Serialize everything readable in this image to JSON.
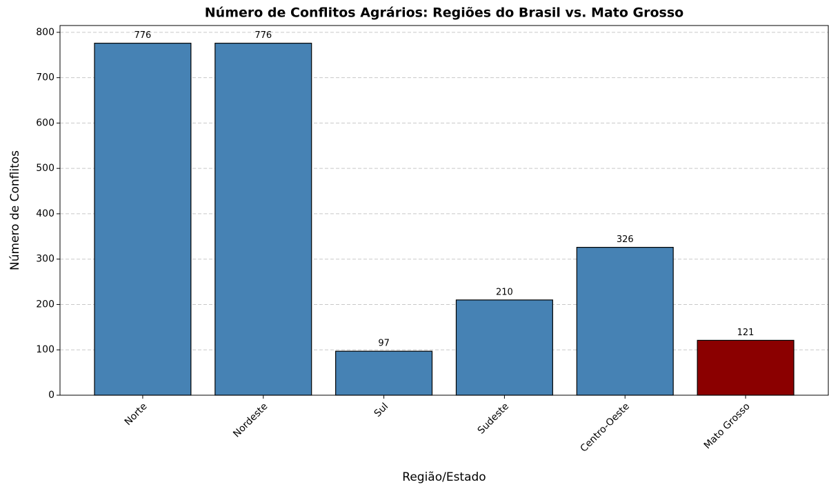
{
  "chart_data": {
    "type": "bar",
    "title": "Número de Conflitos Agrários: Regiões do Brasil vs. Mato Grosso",
    "x_label": "Região/Estado",
    "y_label": "Número de Conflitos",
    "categories": [
      "Norte",
      "Nordeste",
      "Sul",
      "Sudeste",
      "Centro-Oeste",
      "Mato Grosso"
    ],
    "values": [
      776,
      776,
      97,
      210,
      326,
      121
    ],
    "colors": [
      "#4682b4",
      "#4682b4",
      "#4682b4",
      "#4682b4",
      "#4682b4",
      "#8b0000"
    ],
    "ylim": [
      0,
      815
    ],
    "yticks": [
      0,
      100,
      200,
      300,
      400,
      500,
      600,
      700,
      800
    ],
    "grid": true
  }
}
